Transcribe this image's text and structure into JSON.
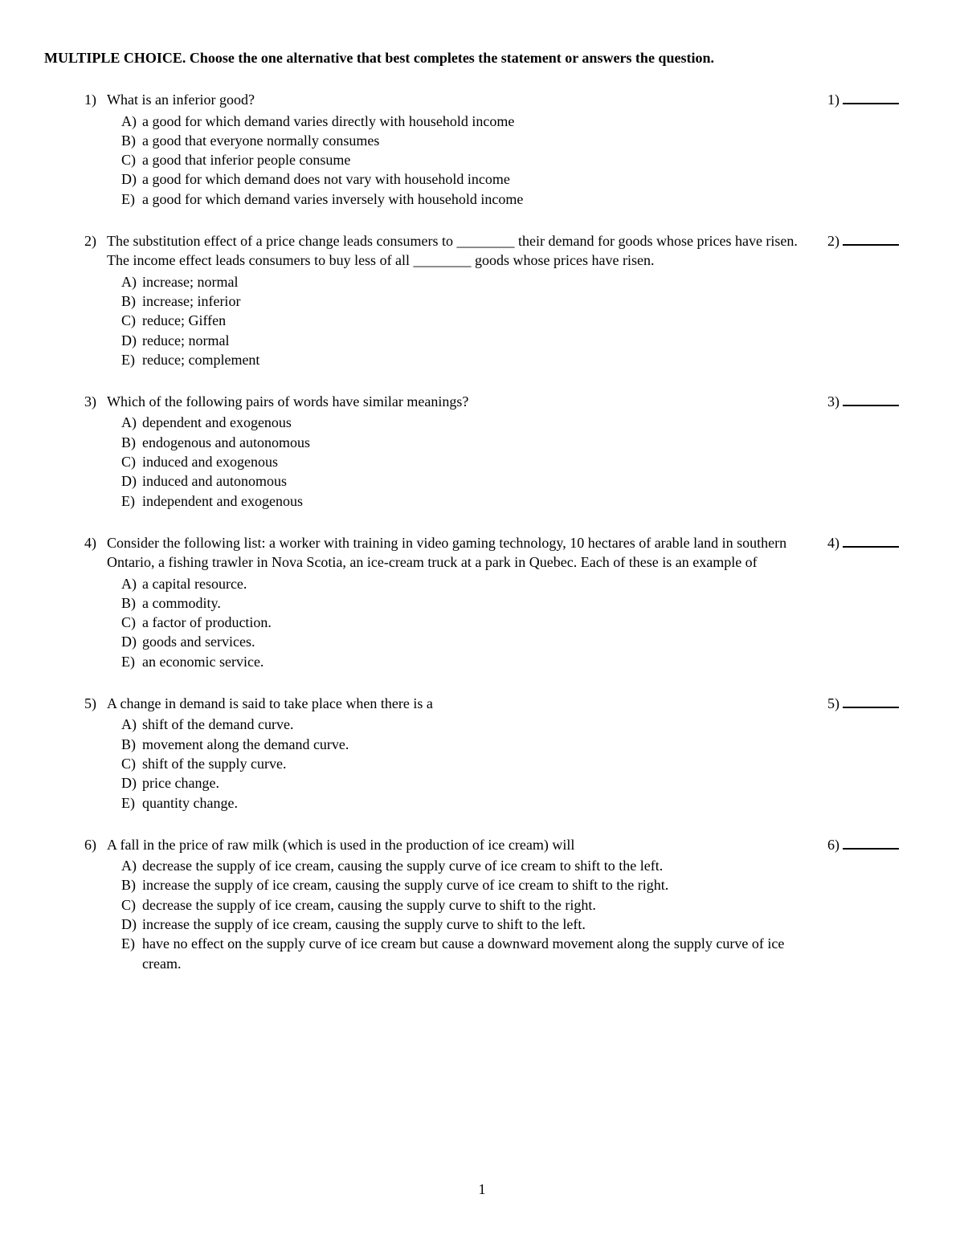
{
  "instructions": "MULTIPLE CHOICE.  Choose the one alternative that best completes the statement or answers the question.",
  "page_number": "1",
  "questions": [
    {
      "num": "1)",
      "text": "What is an inferior good?",
      "options": [
        {
          "label": "A)",
          "text": "a good for which demand varies directly with household income"
        },
        {
          "label": "B)",
          "text": "a good that everyone normally consumes"
        },
        {
          "label": "C)",
          "text": "a good that inferior people consume"
        },
        {
          "label": "D)",
          "text": "a good for which demand does not vary with household income"
        },
        {
          "label": "E)",
          "text": "a good for which demand varies inversely with household income"
        }
      ],
      "answer_label": "1)"
    },
    {
      "num": "2)",
      "text": "The substitution effect of a price change leads consumers to ________ their demand for goods whose prices have risen. The income effect leads consumers to buy less of all ________ goods whose prices have risen.",
      "options": [
        {
          "label": "A)",
          "text": "increase; normal"
        },
        {
          "label": "B)",
          "text": "increase; inferior"
        },
        {
          "label": "C)",
          "text": "reduce; Giffen"
        },
        {
          "label": "D)",
          "text": "reduce; normal"
        },
        {
          "label": "E)",
          "text": "reduce; complement"
        }
      ],
      "answer_label": "2)"
    },
    {
      "num": "3)",
      "text": "Which of the following pairs of words have similar meanings?",
      "options": [
        {
          "label": "A)",
          "text": "dependent and exogenous"
        },
        {
          "label": "B)",
          "text": "endogenous and autonomous"
        },
        {
          "label": "C)",
          "text": "induced and exogenous"
        },
        {
          "label": "D)",
          "text": "induced and autonomous"
        },
        {
          "label": "E)",
          "text": "independent and exogenous"
        }
      ],
      "answer_label": "3)"
    },
    {
      "num": "4)",
      "text": "Consider the following list: a worker with training in video gaming technology, 10 hectares of arable land in southern Ontario, a fishing trawler in Nova Scotia, an ice-cream truck at a park in Quebec. Each of these is an example of",
      "options": [
        {
          "label": "A)",
          "text": "a capital resource."
        },
        {
          "label": "B)",
          "text": "a commodity."
        },
        {
          "label": "C)",
          "text": "a factor of production."
        },
        {
          "label": "D)",
          "text": "goods and services."
        },
        {
          "label": "E)",
          "text": "an economic service."
        }
      ],
      "answer_label": "4)"
    },
    {
      "num": "5)",
      "text": "A change in demand is said to take place when there is a",
      "options": [
        {
          "label": "A)",
          "text": "shift of the demand curve."
        },
        {
          "label": "B)",
          "text": "movement along the demand curve."
        },
        {
          "label": "C)",
          "text": "shift of the supply curve."
        },
        {
          "label": "D)",
          "text": "price change."
        },
        {
          "label": "E)",
          "text": "quantity change."
        }
      ],
      "answer_label": "5)"
    },
    {
      "num": "6)",
      "text": "A fall in the price of raw milk (which is used in the production of ice cream) will",
      "options": [
        {
          "label": "A)",
          "text": "decrease the supply of ice cream, causing the supply curve of ice cream to shift to the left."
        },
        {
          "label": "B)",
          "text": "increase the supply of ice cream, causing the supply curve of ice cream to shift to the right."
        },
        {
          "label": "C)",
          "text": "decrease the supply of ice cream, causing the supply curve to shift to the right."
        },
        {
          "label": "D)",
          "text": "increase the supply of ice cream, causing the supply curve to shift to the left."
        },
        {
          "label": "E)",
          "text": "have no effect on the supply curve of ice cream but cause a downward movement along the supply curve of ice cream."
        }
      ],
      "answer_label": "6)"
    }
  ]
}
